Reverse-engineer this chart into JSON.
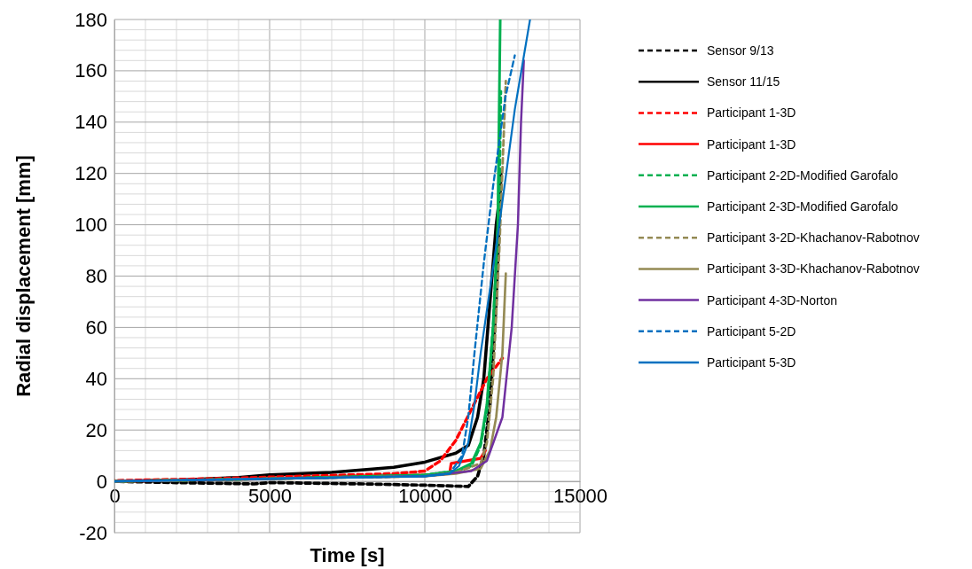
{
  "chart_data": {
    "type": "line",
    "xlabel": "Time [s]",
    "ylabel": "Radial displacement [mm]",
    "xlim": [
      0,
      15000
    ],
    "xticks": [
      0,
      5000,
      10000,
      15000
    ],
    "ylim": [
      -20,
      180
    ],
    "yticks": [
      -20,
      0,
      20,
      40,
      60,
      80,
      100,
      120,
      140,
      160,
      180
    ],
    "grid": true,
    "legend": "right",
    "series": [
      {
        "name": "Sensor 9/13",
        "color": "#000000",
        "line_style": "dashed",
        "x": [
          0,
          2000,
          4500,
          5000,
          8000,
          10000,
          11400,
          11700,
          11900,
          12100,
          12300,
          12450
        ],
        "values": [
          0,
          -0.5,
          -1,
          -0.5,
          -1,
          -1.5,
          -2,
          2,
          10,
          30,
          70,
          120
        ]
      },
      {
        "name": "Sensor 11/15",
        "color": "#000000",
        "line_style": "solid",
        "x": [
          0,
          2000,
          4000,
          5000,
          7000,
          9000,
          10000,
          11000,
          11400,
          11700,
          11900,
          12100,
          12300,
          12400
        ],
        "values": [
          0,
          0.5,
          1.5,
          2.5,
          3.5,
          5.5,
          7.5,
          11,
          14,
          25,
          40,
          70,
          100,
          110
        ]
      },
      {
        "name": "Participant 1-3D",
        "color": "#ff0000",
        "line_style": "dashed",
        "x": [
          0,
          3000,
          6000,
          9000,
          10000,
          10500,
          11000,
          11500,
          12000,
          12500
        ],
        "values": [
          0.3,
          1,
          2,
          3,
          4,
          8,
          16,
          28,
          40,
          48
        ]
      },
      {
        "name": "Participant 1-3D",
        "color": "#ff0000",
        "line_style": "solid",
        "x": [
          0,
          5000,
          10000,
          10800,
          10850,
          11800,
          11950
        ],
        "values": [
          0,
          1,
          2.5,
          3,
          7,
          9,
          12
        ]
      },
      {
        "name": "Participant 2-2D-Modified Garofalo",
        "color": "#00b050",
        "line_style": "dashed",
        "x": [
          0,
          5000,
          10000,
          11000,
          11500,
          11800,
          12000,
          12200,
          12400,
          12450
        ],
        "values": [
          0,
          1,
          2.5,
          4,
          6,
          14,
          28,
          60,
          110,
          152
        ]
      },
      {
        "name": "Participant 2-3D-Modified Garofalo",
        "color": "#00b050",
        "line_style": "solid",
        "x": [
          0,
          5000,
          10000,
          11000,
          11500,
          11800,
          12000,
          12200,
          12350,
          12430
        ],
        "values": [
          0,
          1,
          2.5,
          4,
          7,
          15,
          30,
          60,
          100,
          180
        ]
      },
      {
        "name": "Participant 3-2D-Khachanov-Rabotnov",
        "color": "#948a54",
        "line_style": "dashed",
        "x": [
          0,
          10000,
          11000,
          11800,
          12000,
          12200,
          12400,
          12610
        ],
        "values": [
          0,
          2,
          3.5,
          7,
          15,
          40,
          90,
          156
        ]
      },
      {
        "name": "Participant 3-3D-Khachanov-Rabotnov",
        "color": "#948a54",
        "line_style": "solid",
        "x": [
          0,
          10000,
          11000,
          11800,
          12100,
          12300,
          12500,
          12610
        ],
        "values": [
          0,
          2,
          3,
          5,
          12,
          25,
          50,
          81
        ]
      },
      {
        "name": "Participant 4-3D-Norton",
        "color": "#7030a0",
        "line_style": "solid",
        "x": [
          0,
          10000,
          11500,
          12000,
          12500,
          12800,
          13000,
          13100,
          13190
        ],
        "values": [
          0,
          2,
          4,
          8,
          25,
          60,
          100,
          140,
          164
        ]
      },
      {
        "name": "Participant 5-2D",
        "color": "#0070c0",
        "line_style": "dashed",
        "x": [
          0,
          10000,
          10800,
          11200,
          11400,
          11600,
          11900,
          12200,
          12600,
          12900
        ],
        "values": [
          0,
          2,
          3,
          10,
          25,
          50,
          85,
          115,
          150,
          166
        ]
      },
      {
        "name": "Participant 5-3D",
        "color": "#0070c0",
        "line_style": "solid",
        "x": [
          0,
          10000,
          10800,
          11100,
          11400,
          11600,
          11800,
          12400,
          12900,
          13390
        ],
        "values": [
          0,
          2,
          3,
          6,
          15,
          30,
          50,
          100,
          145,
          180
        ]
      }
    ]
  }
}
